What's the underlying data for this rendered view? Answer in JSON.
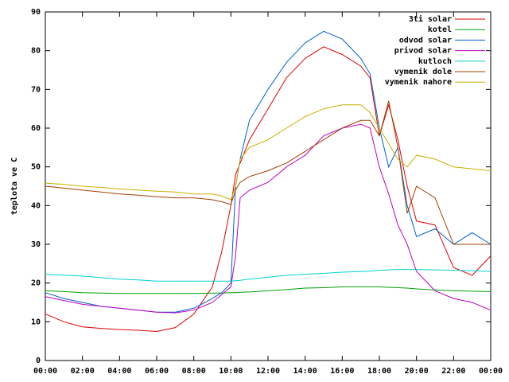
{
  "chart_data": {
    "type": "line",
    "y_label": "teplota ve C",
    "x": [
      0,
      1,
      2,
      3,
      4,
      5,
      6,
      7,
      8,
      9,
      9.5,
      10,
      10.25,
      10.5,
      11,
      12,
      13,
      14,
      15,
      16,
      17,
      17.5,
      18,
      18.5,
      19,
      19.5,
      20,
      21,
      22,
      23,
      24
    ],
    "xlim": [
      0,
      24
    ],
    "xticks": [
      {
        "value": 0,
        "label": "00:00"
      },
      {
        "value": 2,
        "label": "02:00"
      },
      {
        "value": 4,
        "label": "04:00"
      },
      {
        "value": 6,
        "label": "06:00"
      },
      {
        "value": 8,
        "label": "08:00"
      },
      {
        "value": 10,
        "label": "10:00"
      },
      {
        "value": 12,
        "label": "12:00"
      },
      {
        "value": 14,
        "label": "14:00"
      },
      {
        "value": 16,
        "label": "16:00"
      },
      {
        "value": 18,
        "label": "18:00"
      },
      {
        "value": 20,
        "label": "20:00"
      },
      {
        "value": 22,
        "label": "22:00"
      },
      {
        "value": 24,
        "label": "00:00"
      }
    ],
    "ylim": [
      0,
      90
    ],
    "yticks": [
      0,
      10,
      20,
      30,
      40,
      50,
      60,
      70,
      80,
      90
    ],
    "legend": "top-right",
    "series": [
      {
        "name": "3ti solar",
        "color": "#e00000",
        "values": [
          12,
          10,
          8.7,
          8.3,
          8,
          7.8,
          7.5,
          8.5,
          12,
          19,
          28,
          40,
          48,
          51,
          57,
          65,
          73,
          78,
          81,
          79,
          76,
          73,
          58,
          66,
          57,
          45,
          36,
          35,
          24,
          22,
          27
        ]
      },
      {
        "name": "kotel",
        "color": "#00a000",
        "values": [
          18,
          17.8,
          17.5,
          17.4,
          17.3,
          17.3,
          17.3,
          17.3,
          17.3,
          17.4,
          17.4,
          17.5,
          17.5,
          17.6,
          17.7,
          18,
          18.3,
          18.7,
          18.8,
          19,
          19,
          19,
          19,
          18.9,
          18.8,
          18.7,
          18.5,
          18.2,
          18,
          17.9,
          17.8
        ]
      },
      {
        "name": "odvod solar",
        "color": "#0060d0",
        "values": [
          17.5,
          16,
          15,
          14,
          13.5,
          13,
          12.5,
          12.5,
          13.5,
          16,
          17.5,
          20,
          45,
          52,
          62,
          70,
          77,
          82,
          85,
          83,
          78,
          74,
          60,
          50,
          55,
          40,
          32,
          34,
          30,
          33,
          30
        ]
      },
      {
        "name": "privod solar",
        "color": "#c000c0",
        "values": [
          16.5,
          15.5,
          14.5,
          14,
          13.5,
          13,
          12.5,
          12.3,
          13,
          15,
          17,
          19,
          27,
          42,
          44,
          46,
          50,
          53,
          58,
          60,
          61,
          60,
          50,
          43,
          35,
          30,
          23,
          18,
          16,
          15,
          13
        ]
      },
      {
        "name": "kutloch",
        "color": "#00d0d0",
        "values": [
          22.3,
          22,
          21.8,
          21.4,
          21,
          20.8,
          20.5,
          20.5,
          20.5,
          20.5,
          20.5,
          20.5,
          20.6,
          20.7,
          21,
          21.5,
          22,
          22.3,
          22.5,
          22.8,
          23,
          23.1,
          23.3,
          23.4,
          23.5,
          23.5,
          23.5,
          23.4,
          23.3,
          23.2,
          23
        ]
      },
      {
        "name": "vymenik dole",
        "color": "#a04000",
        "values": [
          45,
          44.5,
          44,
          43.5,
          43,
          42.7,
          42.3,
          42,
          42,
          41.5,
          41,
          40.3,
          44,
          46,
          47.5,
          49,
          51,
          54,
          57,
          60,
          62,
          62,
          58,
          67,
          55,
          38,
          45,
          42,
          30,
          30,
          30
        ]
      },
      {
        "name": "vymenik nahore",
        "color": "#c8b000",
        "values": [
          45.8,
          45.5,
          45,
          44.7,
          44.3,
          44,
          43.7,
          43.5,
          43,
          43,
          42.5,
          41.5,
          45,
          52,
          55,
          57,
          60,
          63,
          65,
          66,
          66,
          64,
          60,
          56,
          52,
          50,
          53,
          52,
          50,
          49.5,
          49
        ]
      }
    ]
  }
}
